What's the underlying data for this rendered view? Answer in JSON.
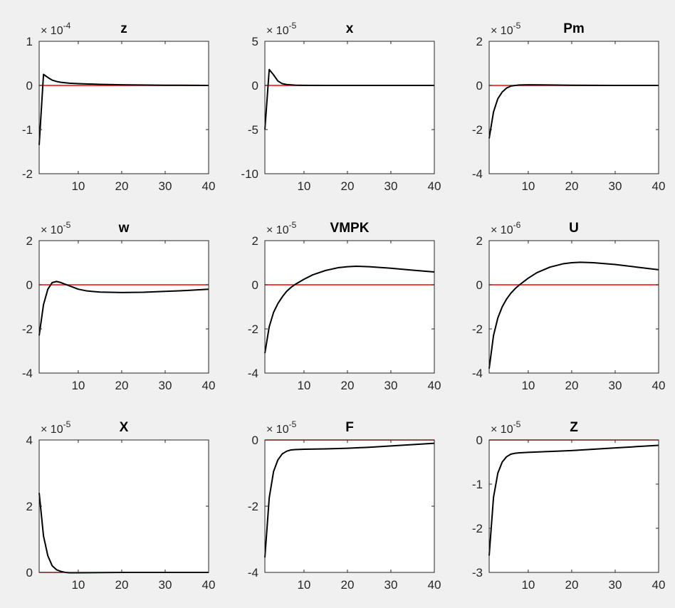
{
  "colors": {
    "background": "#f0f0f0",
    "axes": "#ffffff",
    "line": "#000000",
    "zero_line": "#ff0000"
  },
  "chart_data": [
    {
      "type": "line",
      "title": "z",
      "exponent_base": "× 10",
      "exponent": "-4",
      "xlim": [
        1,
        40
      ],
      "ylim": [
        -2,
        1
      ],
      "xticks": [
        "10",
        "20",
        "30",
        "40"
      ],
      "yticks": [
        "1",
        "0",
        "-1",
        "-2"
      ],
      "series": [
        {
          "x": [
            1,
            2,
            3,
            4,
            5,
            6,
            8,
            10,
            15,
            20,
            30,
            40
          ],
          "y": [
            -1.35,
            0.25,
            0.18,
            0.12,
            0.09,
            0.07,
            0.05,
            0.04,
            0.025,
            0.015,
            0.005,
            0.0
          ]
        }
      ],
      "reference_line": 0
    },
    {
      "type": "line",
      "title": "x",
      "exponent_base": "× 10",
      "exponent": "-5",
      "xlim": [
        1,
        40
      ],
      "ylim": [
        -10,
        5
      ],
      "xticks": [
        "10",
        "20",
        "30",
        "40"
      ],
      "yticks": [
        "5",
        "0",
        "-5",
        "-10"
      ],
      "series": [
        {
          "x": [
            1,
            2,
            3,
            4,
            5,
            6,
            8,
            10,
            15,
            20,
            30,
            40
          ],
          "y": [
            -5,
            1.8,
            1.2,
            0.5,
            0.2,
            0.1,
            0.03,
            0.01,
            0,
            0,
            0,
            0
          ]
        }
      ],
      "reference_line": 0
    },
    {
      "type": "line",
      "title": "Pm",
      "exponent_base": "× 10",
      "exponent": "-5",
      "xlim": [
        1,
        40
      ],
      "ylim": [
        -4,
        2
      ],
      "xticks": [
        "10",
        "20",
        "30",
        "40"
      ],
      "yticks": [
        "2",
        "0",
        "-2",
        "-4"
      ],
      "series": [
        {
          "x": [
            1,
            2,
            3,
            4,
            5,
            6,
            7,
            8,
            10,
            15,
            20,
            30,
            40
          ],
          "y": [
            -2.4,
            -1.2,
            -0.6,
            -0.3,
            -0.12,
            -0.03,
            0.0,
            0.02,
            0.03,
            0.02,
            0.01,
            0.0,
            0.0
          ]
        }
      ],
      "reference_line": 0
    },
    {
      "type": "line",
      "title": "w",
      "exponent_base": "× 10",
      "exponent": "-5",
      "xlim": [
        1,
        40
      ],
      "ylim": [
        -4,
        2
      ],
      "xticks": [
        "10",
        "20",
        "30",
        "40"
      ],
      "yticks": [
        "2",
        "0",
        "-2",
        "-4"
      ],
      "series": [
        {
          "x": [
            1,
            2,
            3,
            4,
            5,
            6,
            8,
            10,
            12,
            15,
            20,
            25,
            30,
            35,
            40
          ],
          "y": [
            -2.3,
            -0.9,
            -0.2,
            0.1,
            0.15,
            0.1,
            -0.05,
            -0.2,
            -0.28,
            -0.33,
            -0.35,
            -0.34,
            -0.3,
            -0.26,
            -0.2
          ]
        }
      ],
      "reference_line": 0
    },
    {
      "type": "line",
      "title": "VMPK",
      "exponent_base": "× 10",
      "exponent": "-5",
      "xlim": [
        1,
        40
      ],
      "ylim": [
        -4,
        2
      ],
      "xticks": [
        "10",
        "20",
        "30",
        "40"
      ],
      "yticks": [
        "2",
        "0",
        "-2",
        "-4"
      ],
      "series": [
        {
          "x": [
            1,
            2,
            3,
            4,
            5,
            6,
            7,
            8,
            10,
            12,
            15,
            18,
            20,
            22,
            25,
            30,
            35,
            40
          ],
          "y": [
            -3.1,
            -1.9,
            -1.25,
            -0.85,
            -0.55,
            -0.3,
            -0.12,
            0.02,
            0.25,
            0.45,
            0.65,
            0.78,
            0.82,
            0.84,
            0.82,
            0.75,
            0.66,
            0.58
          ]
        }
      ],
      "reference_line": 0
    },
    {
      "type": "line",
      "title": "U",
      "exponent_base": "× 10",
      "exponent": "-6",
      "xlim": [
        1,
        40
      ],
      "ylim": [
        -4,
        2
      ],
      "xticks": [
        "10",
        "20",
        "30",
        "40"
      ],
      "yticks": [
        "2",
        "0",
        "-2",
        "-4"
      ],
      "series": [
        {
          "x": [
            1,
            2,
            3,
            4,
            5,
            6,
            7,
            8,
            10,
            12,
            15,
            18,
            20,
            22,
            25,
            30,
            35,
            40
          ],
          "y": [
            -3.8,
            -2.3,
            -1.5,
            -1.0,
            -0.65,
            -0.38,
            -0.17,
            0.0,
            0.3,
            0.55,
            0.8,
            0.95,
            1.0,
            1.02,
            1.0,
            0.92,
            0.8,
            0.68
          ]
        }
      ],
      "reference_line": 0
    },
    {
      "type": "line",
      "title": "X",
      "exponent_base": "× 10",
      "exponent": "-5",
      "xlim": [
        1,
        40
      ],
      "ylim": [
        0,
        4
      ],
      "xticks": [
        "10",
        "20",
        "30",
        "40"
      ],
      "yticks": [
        "4",
        "2",
        "0"
      ],
      "series": [
        {
          "x": [
            1,
            2,
            3,
            4,
            5,
            6,
            7,
            8,
            10,
            15,
            20,
            30,
            40
          ],
          "y": [
            2.4,
            1.1,
            0.5,
            0.2,
            0.08,
            0.03,
            0.0,
            -0.01,
            -0.01,
            -0.005,
            0,
            0,
            0
          ]
        }
      ],
      "reference_line": 0
    },
    {
      "type": "line",
      "title": "F",
      "exponent_base": "× 10",
      "exponent": "-5",
      "xlim": [
        1,
        40
      ],
      "ylim": [
        -4,
        0
      ],
      "xticks": [
        "10",
        "20",
        "30",
        "40"
      ],
      "yticks": [
        "0",
        "-2",
        "-4"
      ],
      "series": [
        {
          "x": [
            1,
            2,
            3,
            4,
            5,
            6,
            7,
            8,
            10,
            15,
            20,
            25,
            30,
            35,
            40
          ],
          "y": [
            -3.55,
            -1.75,
            -0.95,
            -0.6,
            -0.42,
            -0.34,
            -0.3,
            -0.29,
            -0.28,
            -0.27,
            -0.25,
            -0.22,
            -0.18,
            -0.14,
            -0.1
          ]
        }
      ],
      "reference_line": 0
    },
    {
      "type": "line",
      "title": "Z",
      "exponent_base": "× 10",
      "exponent": "-5",
      "xlim": [
        1,
        40
      ],
      "ylim": [
        -3,
        0
      ],
      "xticks": [
        "10",
        "20",
        "30",
        "40"
      ],
      "yticks": [
        "0",
        "-1",
        "-2",
        "-3"
      ],
      "series": [
        {
          "x": [
            1,
            2,
            3,
            4,
            5,
            6,
            7,
            8,
            10,
            15,
            20,
            25,
            30,
            35,
            40
          ],
          "y": [
            -2.62,
            -1.3,
            -0.75,
            -0.5,
            -0.38,
            -0.32,
            -0.3,
            -0.29,
            -0.28,
            -0.26,
            -0.24,
            -0.21,
            -0.18,
            -0.15,
            -0.12
          ]
        }
      ],
      "reference_line": 0
    }
  ]
}
